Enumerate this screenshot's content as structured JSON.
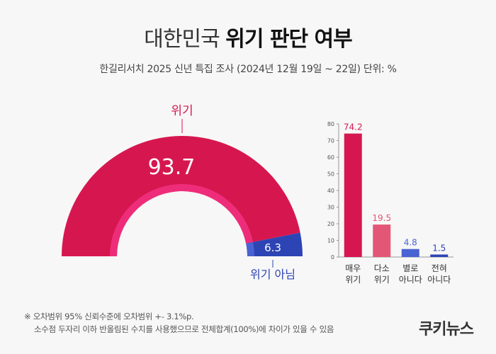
{
  "title": {
    "light": "대한민국",
    "bold": "위기 판단 여부"
  },
  "subtitle": "한길리서치 2025 신년 특집 조사 (2024년 12월 19일 ~ 22일) 단위: %",
  "colors": {
    "crisis": "#d6174f",
    "not_crisis": "#2d44b5",
    "crisis_light": "#e45676",
    "not_crisis_light": "#4a63d3",
    "inner_ring": "#ee2d7a"
  },
  "chart_data": [
    {
      "type": "pie",
      "style": "half-donut",
      "slices": [
        {
          "label": "위기",
          "value": 93.7,
          "color": "#d6174f"
        },
        {
          "label": "위기 아님",
          "value": 6.3,
          "color": "#2d44b5"
        }
      ]
    },
    {
      "type": "bar",
      "categories": [
        "매우 위기",
        "다소 위기",
        "별로 아니다",
        "전혀 아니다"
      ],
      "category_lines": [
        [
          "매우",
          "위기"
        ],
        [
          "다소",
          "위기"
        ],
        [
          "별로",
          "아니다"
        ],
        [
          "전혀",
          "아니다"
        ]
      ],
      "values": [
        74.2,
        19.5,
        4.8,
        1.5
      ],
      "colors": [
        "#d6174f",
        "#e45676",
        "#4a63d3",
        "#2d44b5"
      ],
      "ylim": [
        0,
        80
      ],
      "yticks": [
        0,
        10,
        20,
        30,
        40,
        50,
        60,
        70,
        80
      ],
      "grid": false
    }
  ],
  "footnote": {
    "line1": "※ 오차범위 95% 신뢰수준에 오차범위 +- 3.1%p.",
    "line2": "소수점 두자리 이하 반올림된 수치를 사용했으므로 전체합계(100%)에 차이가 있을 수 있음"
  },
  "logo": "쿠키뉴스"
}
